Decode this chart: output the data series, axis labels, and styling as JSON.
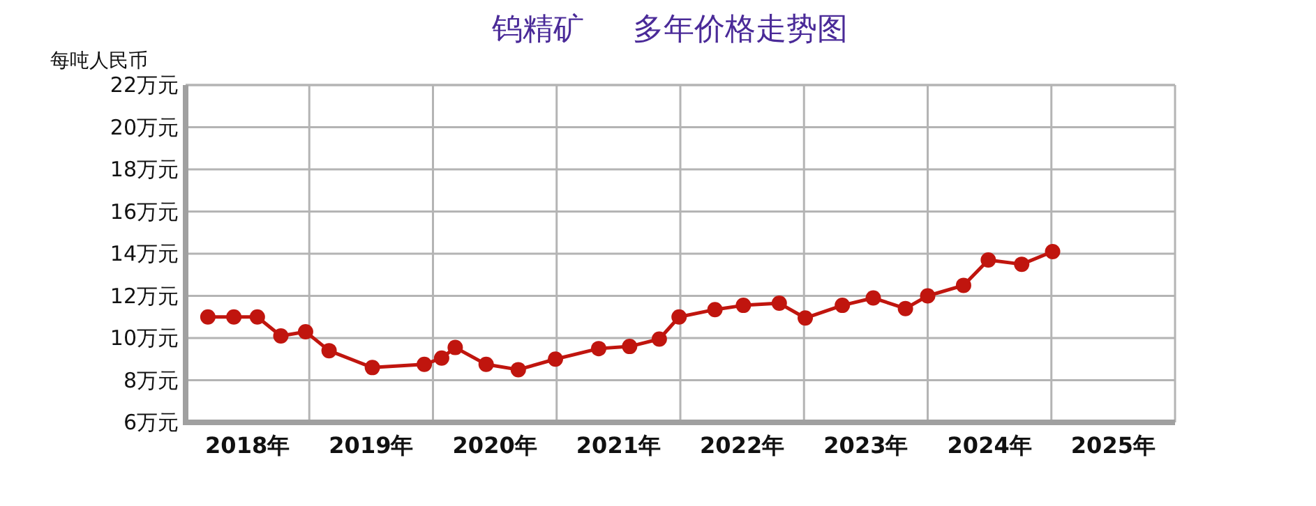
{
  "chart_data": {
    "type": "line",
    "title": "钨精矿     多年价格走势图",
    "ylabel": "每吨人民币",
    "color": "#c0150e",
    "marker": "circle",
    "line_style": "solid",
    "grid": true,
    "x": [
      2018.18,
      2018.39,
      2018.58,
      2018.77,
      2018.97,
      2019.16,
      2019.51,
      2019.93,
      2020.07,
      2020.18,
      2020.43,
      2020.69,
      2020.99,
      2021.34,
      2021.59,
      2021.83,
      2021.99,
      2022.28,
      2022.51,
      2022.8,
      2023.01,
      2023.31,
      2023.56,
      2023.82,
      2024.0,
      2024.29,
      2024.49,
      2024.76,
      2025.01
    ],
    "values": [
      11.0,
      11.0,
      11.0,
      10.1,
      10.3,
      9.4,
      8.6,
      8.75,
      9.05,
      9.55,
      8.75,
      8.5,
      9.0,
      9.5,
      9.6,
      9.95,
      11.0,
      11.35,
      11.55,
      11.65,
      10.95,
      11.55,
      11.9,
      11.4,
      12.0,
      12.5,
      13.7,
      13.5,
      14.1
    ],
    "xlim": [
      2018,
      2026
    ],
    "ylim": [
      6,
      22
    ],
    "xticks": [
      {
        "value": 2018.5,
        "label": "2018年"
      },
      {
        "value": 2019,
        "label": null
      },
      {
        "value": 2019.5,
        "label": "2019年"
      },
      {
        "value": 2020,
        "label": null
      },
      {
        "value": 2020.5,
        "label": "2020年"
      },
      {
        "value": 2021,
        "label": null
      },
      {
        "value": 2021.5,
        "label": "2021年"
      },
      {
        "value": 2022,
        "label": null
      },
      {
        "value": 2022.5,
        "label": "2022年"
      },
      {
        "value": 2023,
        "label": null
      },
      {
        "value": 2023.5,
        "label": "2023年"
      },
      {
        "value": 2024,
        "label": null
      },
      {
        "value": 2024.5,
        "label": "2024年"
      },
      {
        "value": 2025,
        "label": null
      },
      {
        "value": 2025.5,
        "label": "2025年"
      },
      {
        "value": 2026,
        "label": null
      }
    ],
    "yticks": [
      {
        "value": 6,
        "label": "6万元"
      },
      {
        "value": 8,
        "label": "8万元"
      },
      {
        "value": 10,
        "label": "10万元"
      },
      {
        "value": 12,
        "label": "12万元"
      },
      {
        "value": 14,
        "label": "14万元"
      },
      {
        "value": 16,
        "label": "16万元"
      },
      {
        "value": 18,
        "label": "18万元"
      },
      {
        "value": 20,
        "label": "20万元"
      },
      {
        "value": 22,
        "label": "22万元"
      }
    ]
  }
}
